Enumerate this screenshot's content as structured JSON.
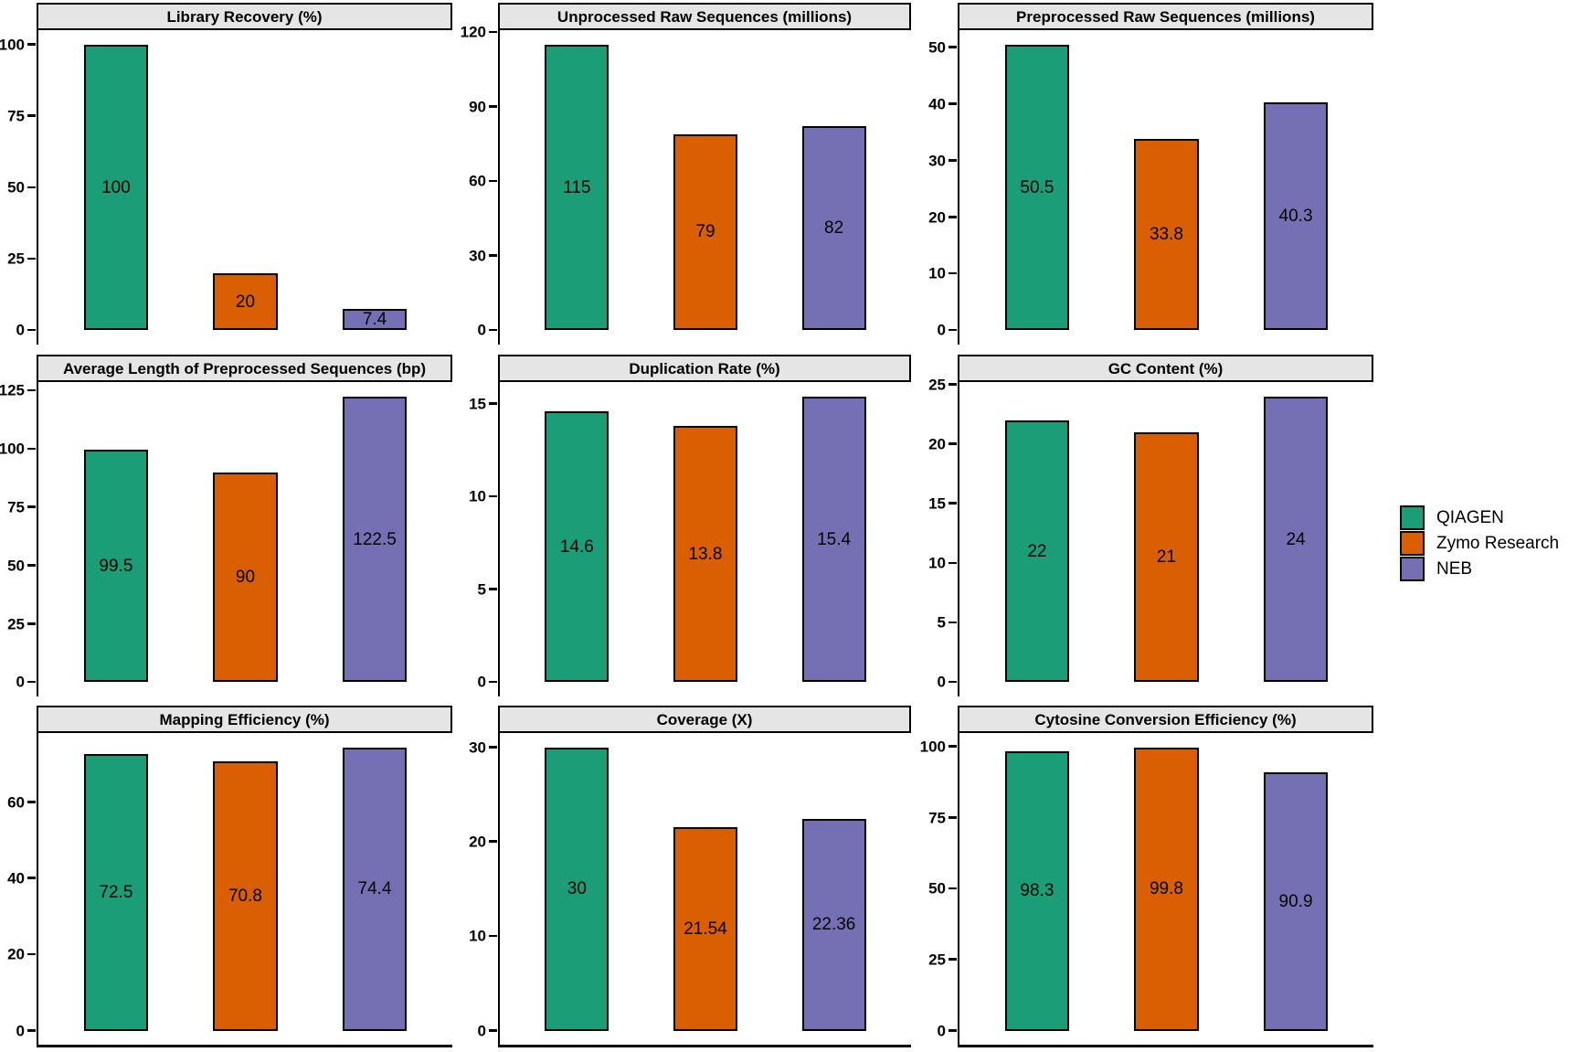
{
  "figure": {
    "background": "#FFFFFF",
    "strip_background": "#E5E5E5",
    "axis_color": "#000000",
    "legend": {
      "position": "right",
      "entries": [
        {
          "label": "QIAGEN",
          "color": "#1B9E77"
        },
        {
          "label": "Zymo Research",
          "color": "#D95F02"
        },
        {
          "label": "NEB",
          "color": "#7570B3"
        }
      ]
    }
  },
  "chart_data": [
    {
      "type": "bar",
      "title": "Library Recovery (%)",
      "categories": [
        "QIAGEN",
        "Zymo Research",
        "NEB"
      ],
      "values": [
        100,
        20,
        7.4
      ],
      "value_labels": [
        "100",
        "20",
        "7.4"
      ],
      "yticks": [
        0,
        25,
        50,
        75,
        100
      ],
      "ylim": [
        0,
        105
      ],
      "grid": false,
      "legend_position": "right"
    },
    {
      "type": "bar",
      "title": "Unprocessed Raw Sequences (millions)",
      "categories": [
        "QIAGEN",
        "Zymo Research",
        "NEB"
      ],
      "values": [
        115,
        79,
        82
      ],
      "value_labels": [
        "115",
        "79",
        "82"
      ],
      "yticks": [
        0,
        30,
        60,
        90,
        120
      ],
      "ylim": [
        0,
        120.75
      ],
      "grid": false
    },
    {
      "type": "bar",
      "title": "Preprocessed Raw Sequences (millions)",
      "categories": [
        "QIAGEN",
        "Zymo Research",
        "NEB"
      ],
      "values": [
        50.5,
        33.8,
        40.3
      ],
      "value_labels": [
        "50.5",
        "33.8",
        "40.3"
      ],
      "yticks": [
        0,
        10,
        20,
        30,
        40,
        50
      ],
      "ylim": [
        0,
        53
      ],
      "grid": false
    },
    {
      "type": "bar",
      "title": "Average Length of Preprocessed Sequences (bp)",
      "categories": [
        "QIAGEN",
        "Zymo Research",
        "NEB"
      ],
      "values": [
        99.5,
        90,
        122.5
      ],
      "value_labels": [
        "99.5",
        "90",
        "122.5"
      ],
      "yticks": [
        0,
        25,
        50,
        75,
        100,
        125
      ],
      "ylim": [
        0,
        128.6
      ],
      "grid": false
    },
    {
      "type": "bar",
      "title": "Duplication Rate (%)",
      "categories": [
        "QIAGEN",
        "Zymo Research",
        "NEB"
      ],
      "values": [
        14.6,
        13.8,
        15.4
      ],
      "value_labels": [
        "14.6",
        "13.8",
        "15.4"
      ],
      "yticks": [
        0,
        5,
        10,
        15
      ],
      "ylim": [
        0,
        16.2
      ],
      "grid": false
    },
    {
      "type": "bar",
      "title": "GC Content (%)",
      "categories": [
        "QIAGEN",
        "Zymo Research",
        "NEB"
      ],
      "values": [
        22,
        21,
        24
      ],
      "value_labels": [
        "22",
        "21",
        "24"
      ],
      "yticks": [
        0,
        5,
        10,
        15,
        20,
        25
      ],
      "ylim": [
        0,
        25.2
      ],
      "grid": false
    },
    {
      "type": "bar",
      "title": "Mapping Efficiency (%)",
      "categories": [
        "QIAGEN",
        "Zymo Research",
        "NEB"
      ],
      "values": [
        72.5,
        70.8,
        74.4
      ],
      "value_labels": [
        "72.5",
        "70.8",
        "74.4"
      ],
      "yticks": [
        0,
        20,
        40,
        60
      ],
      "ylim": [
        0,
        78.1
      ],
      "grid": false
    },
    {
      "type": "bar",
      "title": "Coverage (X)",
      "categories": [
        "QIAGEN",
        "Zymo Research",
        "NEB"
      ],
      "values": [
        30,
        21.54,
        22.36
      ],
      "value_labels": [
        "30",
        "21.54",
        "22.36"
      ],
      "yticks": [
        0,
        10,
        20,
        30
      ],
      "ylim": [
        0,
        31.5
      ],
      "grid": false
    },
    {
      "type": "bar",
      "title": "Cytosine Conversion Efficiency (%)",
      "categories": [
        "QIAGEN",
        "Zymo Research",
        "NEB"
      ],
      "values": [
        98.3,
        99.8,
        90.9
      ],
      "value_labels": [
        "98.3",
        "99.8",
        "90.9"
      ],
      "yticks": [
        0,
        25,
        50,
        75,
        100
      ],
      "ylim": [
        0,
        104.8
      ],
      "grid": false
    }
  ]
}
